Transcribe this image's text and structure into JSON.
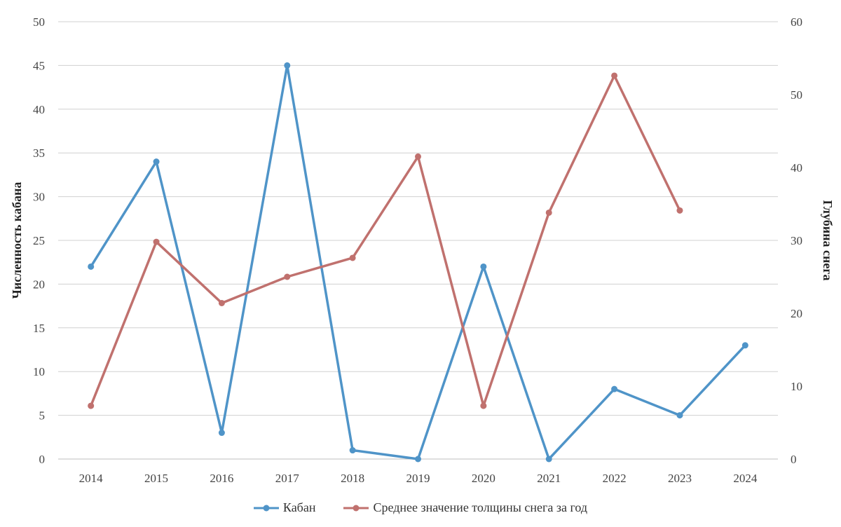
{
  "chart_data": {
    "type": "line",
    "categories": [
      "2014",
      "2015",
      "2016",
      "2017",
      "2018",
      "2019",
      "2020",
      "2021",
      "2022",
      "2023",
      "2024"
    ],
    "y_left": {
      "label": "Численность кабана",
      "range": [
        0,
        50
      ],
      "ticks": [
        "0",
        "5",
        "10",
        "15",
        "20",
        "25",
        "30",
        "35",
        "40",
        "45",
        "50"
      ]
    },
    "y_right": {
      "label": "Глубина снега",
      "range": [
        0,
        60
      ],
      "ticks": [
        "0",
        "10",
        "20",
        "30",
        "40",
        "50",
        "60"
      ]
    },
    "grid": true,
    "legend_position": "bottom",
    "series": [
      {
        "name": "Кабан",
        "axis": "left",
        "color": "#4f94c8",
        "values": [
          22,
          34,
          3,
          45,
          1,
          0,
          22,
          0,
          8,
          5,
          13
        ]
      },
      {
        "name": "Среднее значение толщины снега за год",
        "axis": "right",
        "color": "#c0716e",
        "values": [
          7.3,
          29.8,
          21.4,
          25,
          27.6,
          41.5,
          7.3,
          33.8,
          52.6,
          34.1,
          null
        ]
      }
    ]
  }
}
